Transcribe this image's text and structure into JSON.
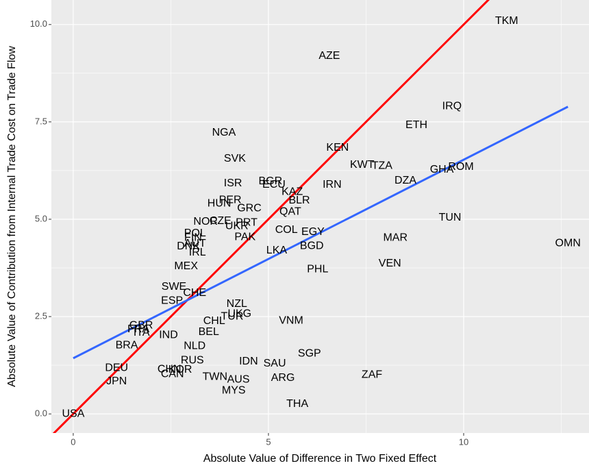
{
  "chart_data": {
    "type": "scatter",
    "xlabel": "Absolute Value of Difference in Two Fixed Effect",
    "ylabel": "Absolute Value of Contribution from Internal Trade Cost on Trade Flow",
    "labels": [
      "TKM",
      "AZE",
      "IRQ",
      "ETH",
      "NGA",
      "KEN",
      "SVK",
      "KWT",
      "TZA",
      "GHA",
      "ROM",
      "DZA",
      "ISR",
      "BGR",
      "ECU",
      "IRN",
      "KAZ",
      "PER",
      "HUN",
      "BLR",
      "GRC",
      "QAT",
      "TUN",
      "NOR",
      "CZE",
      "PRT",
      "UKR",
      "POL",
      "COL",
      "EGY",
      "FIN",
      "PAK",
      "MAR",
      "AUT",
      "DNK",
      "BGD",
      "OMN",
      "IRL",
      "LKA",
      "VEN",
      "MEX",
      "PHL",
      "SWE",
      "CHE",
      "ESP",
      "NZL",
      "UKG",
      "TUR",
      "VNM",
      "CHL",
      "GBR",
      "FRA",
      "ITA",
      "BEL",
      "IND",
      "BRA",
      "NLD",
      "SGP",
      "RUS",
      "IDN",
      "SAU",
      "DEU",
      "CHN",
      "KOR",
      "CAN",
      "ZAF",
      "TWN",
      "AUS",
      "ARG",
      "JPN",
      "MYS",
      "THA",
      "USA"
    ],
    "x": [
      11.1,
      6.56,
      9.7,
      8.79,
      3.86,
      6.77,
      4.14,
      7.4,
      7.91,
      9.44,
      9.93,
      8.51,
      4.09,
      5.05,
      5.14,
      6.63,
      5.61,
      4.02,
      3.74,
      5.79,
      4.51,
      5.56,
      9.65,
      3.39,
      3.77,
      4.44,
      4.19,
      3.12,
      5.46,
      6.14,
      3.07,
      4.4,
      8.25,
      3.12,
      2.95,
      6.11,
      12.67,
      3.18,
      5.21,
      8.11,
      2.89,
      6.26,
      2.58,
      3.11,
      2.53,
      4.19,
      4.26,
      4.07,
      5.58,
      3.61,
      1.74,
      1.67,
      1.75,
      3.47,
      2.44,
      1.37,
      3.11,
      6.05,
      3.05,
      4.49,
      5.16,
      1.11,
      2.46,
      2.74,
      2.54,
      7.65,
      3.63,
      4.23,
      5.37,
      1.11,
      4.11,
      5.74,
      0
    ],
    "y": [
      10.09,
      9.19,
      7.9,
      7.41,
      7.22,
      6.83,
      6.55,
      6.39,
      6.37,
      6.27,
      6.34,
      5.99,
      5.92,
      5.97,
      5.88,
      5.88,
      5.7,
      5.49,
      5.4,
      5.48,
      5.28,
      5.19,
      5.04,
      4.93,
      4.95,
      4.91,
      4.82,
      4.63,
      4.72,
      4.67,
      4.52,
      4.54,
      4.52,
      4.37,
      4.3,
      4.31,
      4.38,
      4.14,
      4.19,
      3.86,
      3.79,
      3.71,
      3.26,
      3.1,
      2.9,
      2.82,
      2.57,
      2.5,
      2.39,
      2.38,
      2.27,
      2.17,
      2.08,
      2.1,
      2.02,
      1.76,
      1.74,
      1.55,
      1.37,
      1.34,
      1.29,
      1.18,
      1.14,
      1.13,
      1.02,
      1.0,
      0.95,
      0.88,
      0.92,
      0.83,
      0.6,
      0.25,
      0
    ],
    "lines": [
      {
        "color": "#ff0000",
        "x": [
          -1,
          11
        ],
        "y": [
          -1,
          11
        ]
      },
      {
        "color": "#3366ff",
        "x": [
          0,
          12.67
        ],
        "y": [
          1.43,
          7.89
        ]
      }
    ],
    "xlim": [
      -0.56,
      13.21
    ],
    "ylim": [
      -0.49,
      10.63
    ],
    "xticks": [
      0,
      5,
      10
    ],
    "yticks": [
      {
        "value": 0,
        "label": "0.0"
      },
      2.5,
      {
        "value": 5,
        "label": "5.0"
      },
      7.5,
      {
        "value": 10,
        "label": "10.0"
      }
    ],
    "grid": true
  }
}
